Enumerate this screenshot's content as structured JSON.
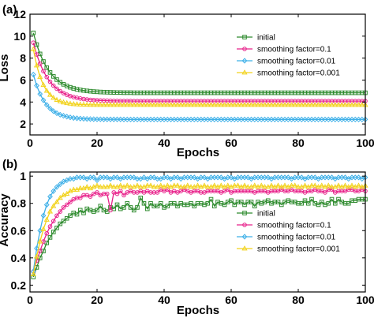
{
  "colors": {
    "initial": "#2e8b2e",
    "sf01": "#e8208a",
    "sf001": "#3fb0e8",
    "sf0001": "#f2d21b"
  },
  "chart_data": [
    {
      "panel_label": "(a)",
      "type": "line",
      "xlabel": "Epochs",
      "ylabel": "Loss",
      "xlim": [
        0,
        100
      ],
      "ylim": [
        1,
        12
      ],
      "xticks": [
        0,
        20,
        40,
        60,
        80,
        100
      ],
      "yticks": [
        2,
        4,
        6,
        8,
        10,
        12
      ],
      "x": [
        1,
        2,
        3,
        4,
        5,
        6,
        7,
        8,
        9,
        10,
        11,
        12,
        13,
        14,
        15,
        16,
        17,
        18,
        19,
        20,
        21,
        22,
        23,
        24,
        25,
        26,
        27,
        28,
        29,
        30,
        31,
        32,
        33,
        34,
        35,
        36,
        37,
        38,
        39,
        40,
        41,
        42,
        43,
        44,
        45,
        46,
        47,
        48,
        49,
        50,
        51,
        52,
        53,
        54,
        55,
        56,
        57,
        58,
        59,
        60,
        61,
        62,
        63,
        64,
        65,
        66,
        67,
        68,
        69,
        70,
        71,
        72,
        73,
        74,
        75,
        76,
        77,
        78,
        79,
        80,
        81,
        82,
        83,
        84,
        85,
        86,
        87,
        88,
        89,
        90,
        91,
        92,
        93,
        94,
        95,
        96,
        97,
        98,
        99,
        100
      ],
      "legend_position": "upper right",
      "series": [
        {
          "name": "initial",
          "color_key": "initial",
          "marker": "square",
          "values": [
            10.3,
            9.23,
            8.38,
            7.69,
            7.13,
            6.69,
            6.33,
            6.04,
            5.8,
            5.61,
            5.46,
            5.34,
            5.24,
            5.16,
            5.1,
            5.05,
            5.01,
            4.98,
            4.95,
            4.93,
            4.91,
            4.9,
            4.89,
            4.88,
            4.87,
            4.86,
            4.86,
            4.85,
            4.85,
            4.85,
            4.84,
            4.84,
            4.84,
            4.84,
            4.84,
            4.84,
            4.84,
            4.84,
            4.84,
            4.84,
            4.84,
            4.84,
            4.84,
            4.84,
            4.84,
            4.84,
            4.84,
            4.84,
            4.84,
            4.84,
            4.84,
            4.84,
            4.84,
            4.84,
            4.84,
            4.84,
            4.84,
            4.84,
            4.84,
            4.84,
            4.84,
            4.84,
            4.84,
            4.84,
            4.84,
            4.84,
            4.84,
            4.84,
            4.84,
            4.84,
            4.84,
            4.84,
            4.84,
            4.84,
            4.84,
            4.84,
            4.84,
            4.84,
            4.84,
            4.84,
            4.84,
            4.84,
            4.84,
            4.84,
            4.84,
            4.84,
            4.84,
            4.84,
            4.84,
            4.84,
            4.84,
            4.84,
            4.84,
            4.84,
            4.84,
            4.84,
            4.84,
            4.84,
            4.84,
            4.84
          ]
        },
        {
          "name": "smoothing factor=0.1",
          "color_key": "sf01",
          "marker": "circle",
          "values": [
            9.4,
            8.33,
            7.49,
            6.81,
            6.27,
            5.84,
            5.49,
            5.21,
            4.99,
            4.81,
            4.66,
            4.54,
            4.45,
            4.38,
            4.32,
            4.27,
            4.23,
            4.2,
            4.18,
            4.16,
            4.14,
            4.13,
            4.12,
            4.11,
            4.1,
            4.1,
            4.09,
            4.09,
            4.09,
            4.09,
            4.08,
            4.08,
            4.08,
            4.08,
            4.08,
            4.08,
            4.08,
            4.08,
            4.08,
            4.08,
            4.08,
            4.08,
            4.08,
            4.08,
            4.08,
            4.08,
            4.08,
            4.08,
            4.08,
            4.08,
            4.08,
            4.08,
            4.08,
            4.08,
            4.08,
            4.08,
            4.08,
            4.08,
            4.08,
            4.08,
            4.08,
            4.08,
            4.08,
            4.08,
            4.08,
            4.08,
            4.08,
            4.08,
            4.08,
            4.08,
            4.08,
            4.08,
            4.08,
            4.08,
            4.08,
            4.08,
            4.08,
            4.08,
            4.08,
            4.08,
            4.08,
            4.08,
            4.08,
            4.08,
            4.08,
            4.08,
            4.08,
            4.08,
            4.08,
            4.08,
            4.08,
            4.08,
            4.08,
            4.08,
            4.08,
            4.08,
            4.08,
            4.08,
            4.08,
            4.08
          ]
        },
        {
          "name": "smoothing factor=0.01",
          "color_key": "sf001",
          "marker": "diamond",
          "values": [
            6.5,
            5.49,
            4.73,
            4.16,
            3.73,
            3.41,
            3.17,
            2.98,
            2.84,
            2.74,
            2.66,
            2.6,
            2.55,
            2.52,
            2.49,
            2.47,
            2.46,
            2.45,
            2.44,
            2.43,
            2.43,
            2.42,
            2.42,
            2.42,
            2.42,
            2.42,
            2.42,
            2.41,
            2.41,
            2.41,
            2.41,
            2.41,
            2.41,
            2.41,
            2.41,
            2.41,
            2.41,
            2.41,
            2.41,
            2.41,
            2.41,
            2.41,
            2.41,
            2.41,
            2.41,
            2.41,
            2.41,
            2.41,
            2.41,
            2.41,
            2.41,
            2.41,
            2.41,
            2.41,
            2.41,
            2.41,
            2.41,
            2.41,
            2.41,
            2.41,
            2.41,
            2.41,
            2.41,
            2.41,
            2.41,
            2.41,
            2.41,
            2.41,
            2.41,
            2.41,
            2.41,
            2.41,
            2.41,
            2.41,
            2.41,
            2.41,
            2.41,
            2.41,
            2.41,
            2.41,
            2.41,
            2.41,
            2.41,
            2.41,
            2.41,
            2.41,
            2.41,
            2.41,
            2.41,
            2.41,
            2.41,
            2.41,
            2.41,
            2.41,
            2.41,
            2.41,
            2.41,
            2.41,
            2.41,
            2.41
          ]
        },
        {
          "name": "smoothing factor=0.001",
          "color_key": "sf0001",
          "marker": "triangle",
          "values": [
            8.8,
            7.33,
            6.29,
            5.55,
            5.02,
            4.65,
            4.38,
            4.19,
            4.06,
            3.96,
            3.9,
            3.85,
            3.81,
            3.79,
            3.77,
            3.76,
            3.75,
            3.74,
            3.74,
            3.73,
            3.73,
            3.73,
            3.73,
            3.73,
            3.73,
            3.73,
            3.73,
            3.73,
            3.73,
            3.73,
            3.73,
            3.73,
            3.73,
            3.73,
            3.73,
            3.73,
            3.73,
            3.73,
            3.73,
            3.73,
            3.73,
            3.73,
            3.73,
            3.73,
            3.73,
            3.73,
            3.73,
            3.73,
            3.73,
            3.73,
            3.73,
            3.73,
            3.73,
            3.73,
            3.73,
            3.73,
            3.73,
            3.73,
            3.73,
            3.73,
            3.73,
            3.73,
            3.73,
            3.73,
            3.73,
            3.73,
            3.73,
            3.73,
            3.73,
            3.73,
            3.73,
            3.73,
            3.73,
            3.73,
            3.73,
            3.73,
            3.73,
            3.73,
            3.73,
            3.73,
            3.73,
            3.73,
            3.73,
            3.73,
            3.73,
            3.73,
            3.73,
            3.73,
            3.73,
            3.73,
            3.73,
            3.73,
            3.73,
            3.73,
            3.73,
            3.73,
            3.73,
            3.73,
            3.73,
            3.73
          ]
        }
      ]
    },
    {
      "panel_label": "(b)",
      "type": "line",
      "xlabel": "Epochs",
      "ylabel": "Accuracy",
      "xlim": [
        0,
        100
      ],
      "ylim": [
        0.15,
        1.03
      ],
      "xticks": [
        0,
        20,
        40,
        60,
        80,
        100
      ],
      "yticks": [
        0.2,
        0.4,
        0.6,
        0.8,
        1
      ],
      "x": [
        1,
        2,
        3,
        4,
        5,
        6,
        7,
        8,
        9,
        10,
        11,
        12,
        13,
        14,
        15,
        16,
        17,
        18,
        19,
        20,
        21,
        22,
        23,
        24,
        25,
        26,
        27,
        28,
        29,
        30,
        31,
        32,
        33,
        34,
        35,
        36,
        37,
        38,
        39,
        40,
        41,
        42,
        43,
        44,
        45,
        46,
        47,
        48,
        49,
        50,
        51,
        52,
        53,
        54,
        55,
        56,
        57,
        58,
        59,
        60,
        61,
        62,
        63,
        64,
        65,
        66,
        67,
        68,
        69,
        70,
        71,
        72,
        73,
        74,
        75,
        76,
        77,
        78,
        79,
        80,
        81,
        82,
        83,
        84,
        85,
        86,
        87,
        88,
        89,
        90,
        91,
        92,
        93,
        94,
        95,
        96,
        97,
        98,
        99,
        100
      ],
      "legend_position": "center right",
      "series": [
        {
          "name": "initial",
          "color_key": "initial",
          "marker": "square",
          "values": [
            0.26,
            0.33,
            0.4,
            0.45,
            0.51,
            0.55,
            0.59,
            0.62,
            0.65,
            0.67,
            0.69,
            0.71,
            0.73,
            0.72,
            0.75,
            0.73,
            0.76,
            0.75,
            0.74,
            0.75,
            0.78,
            0.75,
            0.74,
            0.77,
            0.76,
            0.79,
            0.76,
            0.77,
            0.8,
            0.77,
            0.75,
            0.77,
            0.84,
            0.8,
            0.76,
            0.8,
            0.78,
            0.78,
            0.8,
            0.77,
            0.78,
            0.8,
            0.8,
            0.78,
            0.8,
            0.79,
            0.79,
            0.8,
            0.78,
            0.8,
            0.8,
            0.79,
            0.8,
            0.83,
            0.78,
            0.81,
            0.8,
            0.79,
            0.81,
            0.82,
            0.79,
            0.81,
            0.81,
            0.79,
            0.81,
            0.81,
            0.78,
            0.81,
            0.8,
            0.81,
            0.82,
            0.8,
            0.81,
            0.81,
            0.79,
            0.81,
            0.82,
            0.81,
            0.81,
            0.8,
            0.8,
            0.82,
            0.8,
            0.83,
            0.8,
            0.79,
            0.81,
            0.79,
            0.8,
            0.83,
            0.8,
            0.83,
            0.81,
            0.8,
            0.8,
            0.82,
            0.82,
            0.83,
            0.83,
            0.83
          ]
        },
        {
          "name": "smoothing factor=0.1",
          "color_key": "sf01",
          "marker": "circle",
          "values": [
            0.3,
            0.38,
            0.45,
            0.52,
            0.58,
            0.63,
            0.67,
            0.71,
            0.74,
            0.77,
            0.79,
            0.81,
            0.83,
            0.84,
            0.84,
            0.86,
            0.86,
            0.85,
            0.87,
            0.88,
            0.86,
            0.87,
            0.87,
            0.75,
            0.88,
            0.87,
            0.89,
            0.86,
            0.88,
            0.89,
            0.88,
            0.88,
            0.89,
            0.88,
            0.89,
            0.88,
            0.88,
            0.88,
            0.9,
            0.89,
            0.9,
            0.88,
            0.89,
            0.88,
            0.89,
            0.9,
            0.89,
            0.88,
            0.89,
            0.89,
            0.88,
            0.88,
            0.89,
            0.89,
            0.89,
            0.89,
            0.88,
            0.89,
            0.9,
            0.88,
            0.89,
            0.89,
            0.89,
            0.89,
            0.89,
            0.89,
            0.88,
            0.89,
            0.89,
            0.89,
            0.88,
            0.89,
            0.89,
            0.89,
            0.9,
            0.89,
            0.89,
            0.9,
            0.89,
            0.89,
            0.89,
            0.88,
            0.89,
            0.89,
            0.9,
            0.89,
            0.89,
            0.88,
            0.9,
            0.9,
            0.88,
            0.89,
            0.89,
            0.89,
            0.9,
            0.9,
            0.89,
            0.89,
            0.9,
            0.89
          ]
        },
        {
          "name": "smoothing factor=0.01",
          "color_key": "sf001",
          "marker": "diamond",
          "values": [
            0.3,
            0.47,
            0.6,
            0.71,
            0.79,
            0.85,
            0.89,
            0.92,
            0.94,
            0.96,
            0.97,
            0.98,
            0.98,
            0.99,
            0.99,
            0.99,
            0.98,
            0.99,
            0.99,
            0.97,
            0.99,
            0.99,
            0.99,
            0.98,
            0.99,
            0.99,
            0.98,
            0.99,
            0.99,
            0.99,
            0.99,
            0.98,
            0.98,
            0.99,
            0.98,
            0.99,
            0.99,
            0.98,
            0.98,
            0.99,
            0.99,
            0.98,
            0.99,
            0.99,
            0.98,
            0.99,
            0.99,
            0.99,
            0.99,
            0.98,
            0.99,
            0.99,
            0.98,
            0.99,
            0.99,
            0.99,
            0.99,
            0.98,
            0.99,
            0.99,
            0.98,
            0.99,
            0.99,
            0.99,
            0.99,
            0.98,
            0.99,
            0.99,
            0.99,
            0.99,
            0.99,
            0.98,
            0.99,
            0.99,
            0.99,
            0.99,
            0.99,
            0.98,
            0.99,
            0.99,
            0.99,
            0.98,
            0.99,
            0.99,
            0.99,
            0.98,
            0.99,
            0.99,
            0.99,
            0.99,
            0.98,
            0.99,
            0.99,
            0.99,
            0.98,
            0.99,
            0.99,
            0.99,
            0.98,
            0.99
          ]
        },
        {
          "name": "smoothing factor=0.001",
          "color_key": "sf0001",
          "marker": "triangle",
          "values": [
            0.28,
            0.41,
            0.52,
            0.61,
            0.68,
            0.74,
            0.78,
            0.81,
            0.84,
            0.86,
            0.87,
            0.89,
            0.9,
            0.9,
            0.91,
            0.91,
            0.92,
            0.91,
            0.92,
            0.93,
            0.92,
            0.92,
            0.92,
            0.93,
            0.92,
            0.92,
            0.93,
            0.92,
            0.93,
            0.92,
            0.92,
            0.93,
            0.92,
            0.92,
            0.93,
            0.93,
            0.92,
            0.92,
            0.93,
            0.92,
            0.93,
            0.92,
            0.93,
            0.93,
            0.92,
            0.92,
            0.93,
            0.92,
            0.92,
            0.93,
            0.92,
            0.93,
            0.92,
            0.92,
            0.93,
            0.92,
            0.93,
            0.92,
            0.93,
            0.92,
            0.93,
            0.93,
            0.92,
            0.93,
            0.92,
            0.92,
            0.93,
            0.92,
            0.93,
            0.92,
            0.92,
            0.93,
            0.92,
            0.93,
            0.92,
            0.93,
            0.92,
            0.93,
            0.93,
            0.92,
            0.92,
            0.93,
            0.92,
            0.93,
            0.93,
            0.92,
            0.93,
            0.92,
            0.93,
            0.92,
            0.92,
            0.93,
            0.92,
            0.93,
            0.92,
            0.93,
            0.92,
            0.93,
            0.92,
            0.93
          ]
        }
      ]
    }
  ]
}
